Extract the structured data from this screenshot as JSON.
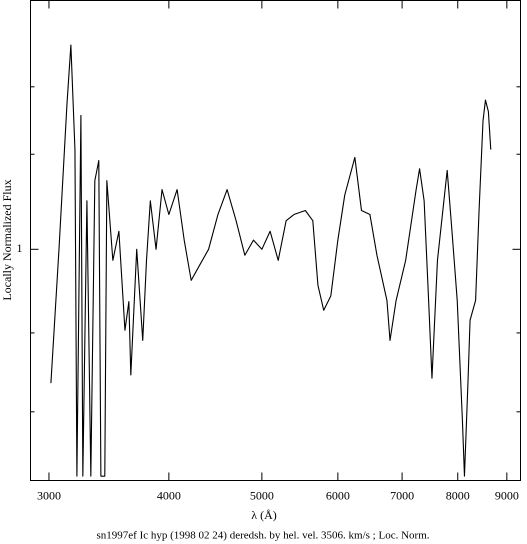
{
  "chart_data": {
    "type": "line",
    "caption": "sn1997ef Ic hyp (1998 02 24) deredsh. by hel. vel.  3506. km/s ;  Loc. Norm.",
    "xlabel": "λ (Å)",
    "ylabel": "Locally Normalized Flux",
    "xlog": true,
    "ylog": true,
    "xlim": [
      2870,
      9300
    ],
    "ylim": [
      0.373,
      2.89
    ],
    "xticks": [
      3000,
      4000,
      5000,
      6000,
      7000,
      8000,
      9000
    ],
    "yticks": [
      1
    ],
    "yminorticks": [
      0.5,
      0.7,
      1.5,
      2
    ],
    "color": "#000000",
    "x": [
      3014,
      3073,
      3132,
      3162,
      3193,
      3208,
      3239,
      3254,
      3286,
      3317,
      3349,
      3381,
      3398,
      3430,
      3447,
      3497,
      3548,
      3600,
      3634,
      3651,
      3703,
      3757,
      3791,
      3826,
      3879,
      3935,
      4000,
      4080,
      4150,
      4220,
      4300,
      4400,
      4500,
      4600,
      4700,
      4800,
      4900,
      5000,
      5100,
      5200,
      5300,
      5400,
      5550,
      5650,
      5720,
      5800,
      5900,
      6000,
      6100,
      6250,
      6350,
      6480,
      6590,
      6750,
      6800,
      6900,
      7060,
      7240,
      7300,
      7380,
      7460,
      7520,
      7620,
      7750,
      7800,
      7890,
      7990,
      8090,
      8130,
      8200,
      8240,
      8350,
      8420,
      8500,
      8550,
      8610,
      8660
    ],
    "values": [
      0.565,
      1.0,
      1.85,
      2.39,
      1.53,
      0.38,
      1.77,
      0.38,
      1.23,
      0.38,
      1.34,
      1.46,
      0.38,
      0.38,
      1.34,
      0.954,
      1.08,
      0.708,
      0.8,
      0.585,
      1.0,
      0.678,
      0.954,
      1.23,
      1.0,
      1.29,
      1.16,
      1.29,
      1.04,
      0.876,
      0.93,
      1.0,
      1.16,
      1.29,
      1.13,
      0.975,
      1.04,
      1.0,
      1.08,
      0.954,
      1.13,
      1.16,
      1.18,
      1.13,
      0.858,
      0.771,
      0.82,
      1.04,
      1.26,
      1.48,
      1.18,
      1.16,
      0.975,
      0.804,
      0.678,
      0.804,
      0.954,
      1.29,
      1.41,
      1.23,
      0.804,
      0.577,
      0.954,
      1.26,
      1.4,
      1.08,
      0.804,
      0.482,
      0.38,
      0.572,
      0.739,
      0.804,
      1.18,
      1.73,
      1.89,
      1.8,
      1.53
    ]
  }
}
